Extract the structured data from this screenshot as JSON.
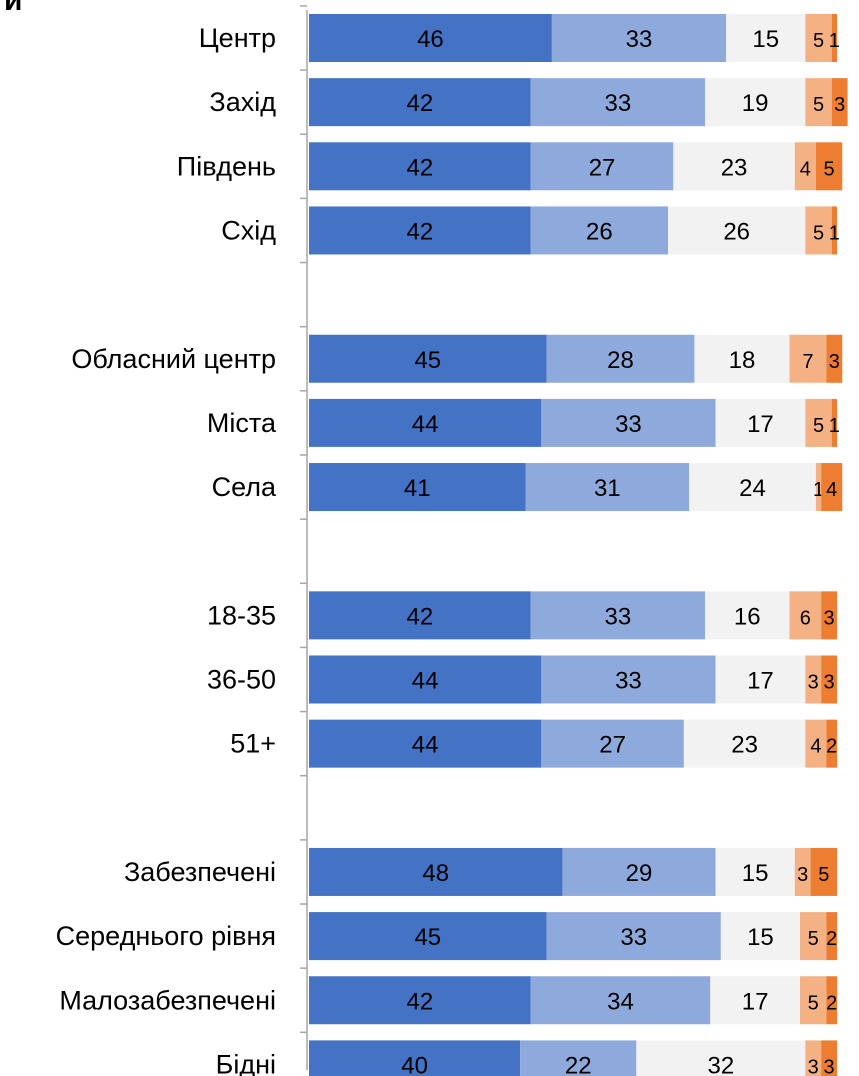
{
  "title_fragment": "и",
  "chart_data": {
    "type": "bar",
    "orientation": "horizontal",
    "stacked": true,
    "xlim": [
      0,
      100
    ],
    "grid": false,
    "legend": "none",
    "colors": [
      "#4472C4",
      "#8EA9DB",
      "#F2F2F2",
      "#F4B183",
      "#ED7D31"
    ],
    "groups": [
      {
        "rows": [
          {
            "label": "Центр",
            "values": [
              46,
              33,
              15,
              5,
              1
            ]
          },
          {
            "label": "Захід",
            "values": [
              42,
              33,
              19,
              5,
              3
            ]
          },
          {
            "label": "Південь",
            "values": [
              42,
              27,
              23,
              4,
              5
            ]
          },
          {
            "label": "Схід",
            "values": [
              42,
              26,
              26,
              5,
              1
            ]
          }
        ]
      },
      {
        "rows": [
          {
            "label": "Обласний центр",
            "values": [
              45,
              28,
              18,
              7,
              3
            ]
          },
          {
            "label": "Міста",
            "values": [
              44,
              33,
              17,
              5,
              1
            ]
          },
          {
            "label": "Села",
            "values": [
              41,
              31,
              24,
              1,
              4
            ]
          }
        ]
      },
      {
        "rows": [
          {
            "label": "18-35",
            "values": [
              42,
              33,
              16,
              6,
              3
            ]
          },
          {
            "label": "36-50",
            "values": [
              44,
              33,
              17,
              3,
              3
            ]
          },
          {
            "label": "51+",
            "values": [
              44,
              27,
              23,
              4,
              2
            ]
          }
        ]
      },
      {
        "rows": [
          {
            "label": "Забезпечені",
            "values": [
              48,
              29,
              15,
              3,
              5
            ]
          },
          {
            "label": "Середнього рівня",
            "values": [
              45,
              33,
              15,
              5,
              2
            ]
          },
          {
            "label": "Малозабезпечені",
            "values": [
              42,
              34,
              17,
              5,
              2
            ]
          },
          {
            "label": "Бідні",
            "values": [
              40,
              22,
              32,
              3,
              3
            ]
          }
        ]
      }
    ]
  }
}
